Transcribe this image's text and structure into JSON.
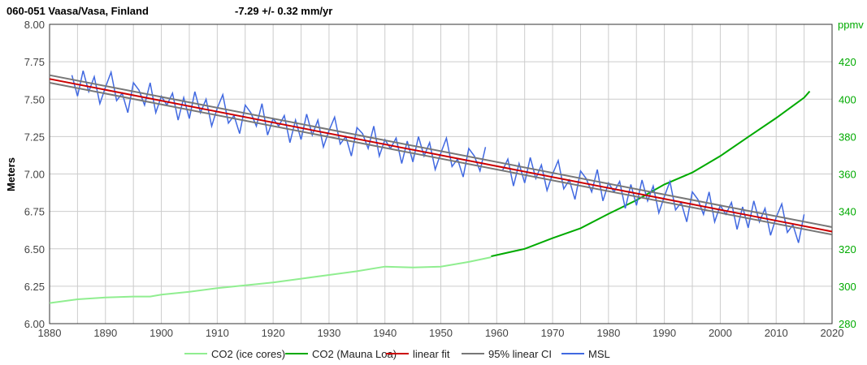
{
  "chart_data": {
    "type": "line",
    "title": "060-051 Vaasa/Vasa, Finland",
    "subtitle": "-7.29 +/- 0.32 mm/yr",
    "ylabel": "Meters",
    "y2label": "ppmv",
    "xlim": [
      1880,
      2020
    ],
    "ylim": [
      6.0,
      8.0
    ],
    "y2lim": [
      280,
      440
    ],
    "x_ticks": [
      1880,
      1890,
      1900,
      1910,
      1920,
      1930,
      1940,
      1950,
      1960,
      1970,
      1980,
      1990,
      2000,
      2010,
      2020
    ],
    "y_ticks": [
      "6.00",
      "6.25",
      "6.50",
      "6.75",
      "7.00",
      "7.25",
      "7.50",
      "7.75",
      "8.00"
    ],
    "y2_ticks": [
      280,
      300,
      320,
      340,
      360,
      380,
      400,
      420
    ],
    "grid": true,
    "legend_position": "bottom",
    "series": [
      {
        "name": "CO2 (ice cores)",
        "axis": "right",
        "color": "#90ee90",
        "x": [
          1880,
          1885,
          1890,
          1895,
          1898,
          1900,
          1905,
          1910,
          1915,
          1920,
          1925,
          1930,
          1935,
          1940,
          1945,
          1950,
          1955,
          1959
        ],
        "y": [
          291,
          293,
          294,
          294.5,
          294.5,
          295.5,
          297,
          299,
          300.5,
          302,
          304,
          306,
          308,
          310.5,
          310,
          310.5,
          313,
          315.5
        ]
      },
      {
        "name": "CO2 (Mauna Loa)",
        "axis": "right",
        "color": "#00aa00",
        "x": [
          1959,
          1965,
          1970,
          1975,
          1980,
          1985,
          1990,
          1995,
          2000,
          2005,
          2010,
          2015,
          2016
        ],
        "y": [
          316,
          320,
          325.7,
          331,
          338.7,
          346,
          354.4,
          360.8,
          369.6,
          379.8,
          389.9,
          400.8,
          404.2
        ]
      },
      {
        "name": "linear fit",
        "axis": "left",
        "color": "#cc0000",
        "x": [
          1880,
          2020
        ],
        "y": [
          7.635,
          6.615
        ]
      },
      {
        "name": "95% linear CI",
        "axis": "left",
        "color": "#777777",
        "x": [
          1880,
          2020
        ],
        "y": [
          7.66,
          6.645
        ],
        "y_lower": [
          7.61,
          6.595
        ]
      },
      {
        "name": "MSL",
        "axis": "left",
        "color": "#4169e1",
        "x_start": 1884,
        "y": [
          7.66,
          7.52,
          7.69,
          7.55,
          7.65,
          7.47,
          7.58,
          7.68,
          7.49,
          7.54,
          7.41,
          7.61,
          7.56,
          7.46,
          7.61,
          7.41,
          7.52,
          7.46,
          7.54,
          7.36,
          7.51,
          7.37,
          7.55,
          7.41,
          7.5,
          7.32,
          7.44,
          7.53,
          7.34,
          7.39,
          7.27,
          7.46,
          7.41,
          7.32,
          7.47,
          7.26,
          7.37,
          7.32,
          7.39,
          7.21,
          7.36,
          7.23,
          7.4,
          7.26,
          7.36,
          7.18,
          7.29,
          7.38,
          7.2,
          7.25,
          7.12,
          7.31,
          7.27,
          7.17,
          7.32,
          7.12,
          7.23,
          7.17,
          7.24,
          7.07,
          7.22,
          7.08,
          7.25,
          7.12,
          7.21,
          7.03,
          7.14,
          7.24,
          7.05,
          7.1,
          6.98,
          7.17,
          7.12,
          7.02,
          7.18,
          null,
          null,
          7.02,
          7.1,
          6.92,
          7.07,
          6.94,
          7.11,
          6.97,
          7.06,
          6.89,
          7.0,
          7.09,
          6.9,
          6.96,
          6.83,
          7.02,
          6.97,
          6.88,
          7.03,
          6.82,
          6.94,
          6.88,
          6.95,
          6.77,
          6.93,
          6.79,
          6.96,
          6.82,
          6.92,
          6.74,
          6.85,
          6.95,
          6.76,
          6.81,
          6.68,
          6.88,
          6.83,
          6.73,
          6.88,
          6.68,
          6.79,
          6.73,
          6.81,
          6.63,
          6.78,
          6.64,
          6.82,
          6.68,
          6.77,
          6.59,
          6.71,
          6.8,
          6.61,
          6.66,
          6.54,
          6.73
        ]
      }
    ]
  }
}
